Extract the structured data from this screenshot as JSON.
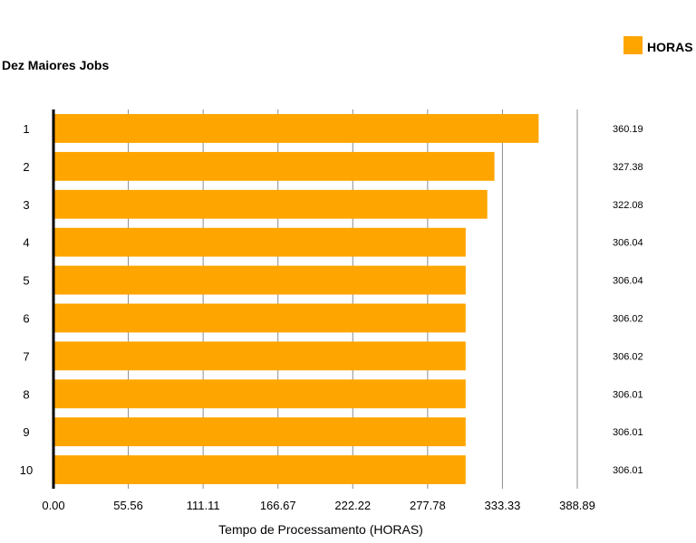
{
  "chart_data": {
    "type": "bar",
    "orientation": "horizontal",
    "title": "Dez Maiores Jobs",
    "xlabel": "Tempo de Processamento (HORAS)",
    "ylabel": "",
    "categories": [
      "1",
      "2",
      "3",
      "4",
      "5",
      "6",
      "7",
      "8",
      "9",
      "10"
    ],
    "series": [
      {
        "name": "HORAS",
        "color": "#FFA500",
        "values": [
          360.19,
          327.38,
          322.08,
          306.04,
          306.04,
          306.02,
          306.02,
          306.01,
          306.01,
          306.01
        ]
      }
    ],
    "value_labels": [
      "360.19",
      "327.38",
      "322.08",
      "306.04",
      "306.04",
      "306.02",
      "306.02",
      "306.01",
      "306.01",
      "306.01"
    ],
    "xticks": [
      "0.00",
      "55.56",
      "111.11",
      "166.67",
      "222.22",
      "277.78",
      "333.33",
      "388.89"
    ],
    "xlim": [
      0,
      388.89
    ],
    "grid": true,
    "legend_position": "top-right"
  }
}
